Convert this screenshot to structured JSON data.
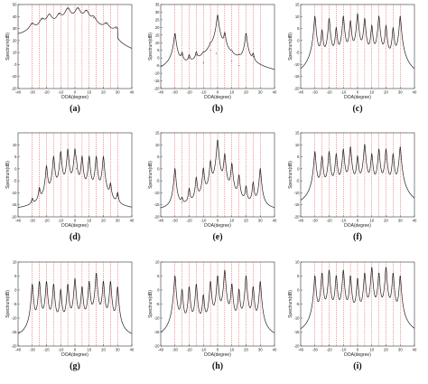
{
  "figure": {
    "panel_labels": [
      "(a)",
      "(b)",
      "(c)",
      "(d)",
      "(e)",
      "(f)",
      "(g)",
      "(h)",
      "(i)"
    ]
  },
  "chart_data": [
    {
      "type": "line",
      "panel": "(a)",
      "xlabel": "DOA(degree)",
      "ylabel": "Spectrum(dB)",
      "xlim": [
        -40,
        40
      ],
      "ylim": [
        -20,
        50
      ],
      "xticks": [
        -40,
        -30,
        -20,
        -10,
        0,
        10,
        20,
        30,
        40
      ],
      "yticks": [
        -20,
        -10,
        0,
        10,
        20,
        30,
        40,
        50
      ],
      "true_doas": [
        -30,
        -25,
        -20,
        -15,
        -10,
        -5,
        0,
        5,
        10,
        15,
        20,
        25,
        30
      ],
      "peaks": [
        {
          "x": -40,
          "y": 18
        },
        {
          "x": -30,
          "y": 34
        },
        {
          "x": -23,
          "y": 38
        },
        {
          "x": -18,
          "y": 42
        },
        {
          "x": -11,
          "y": 42
        },
        {
          "x": -5,
          "y": 47
        },
        {
          "x": 2,
          "y": 47
        },
        {
          "x": 8,
          "y": 45
        },
        {
          "x": 13,
          "y": 39
        },
        {
          "x": 22,
          "y": 34
        },
        {
          "x": 29,
          "y": 30
        }
      ],
      "baseline": 12
    },
    {
      "type": "line",
      "panel": "(b)",
      "xlabel": "DOA(degree)",
      "ylabel": "Spectrum(dB)",
      "xlim": [
        -40,
        40
      ],
      "ylim": [
        -20,
        35
      ],
      "xticks": [
        -40,
        -30,
        -20,
        -10,
        0,
        10,
        20,
        30,
        40
      ],
      "yticks": [
        -20,
        -15,
        -10,
        -5,
        0,
        5,
        10,
        15,
        20,
        25,
        30,
        35
      ],
      "true_doas": [
        -30,
        -25,
        -20,
        -15,
        -10,
        -5,
        0,
        5,
        10,
        15,
        20,
        25,
        30
      ],
      "peaks": [
        {
          "x": -30,
          "y": 16
        },
        {
          "x": -25,
          "y": 2
        },
        {
          "x": -20,
          "y": 0
        },
        {
          "x": -15,
          "y": 2
        },
        {
          "x": -10,
          "y": -3
        },
        {
          "x": -5,
          "y": 5
        },
        {
          "x": -1,
          "y": 3
        },
        {
          "x": 0,
          "y": 28
        },
        {
          "x": 5,
          "y": 16
        },
        {
          "x": 10,
          "y": -2
        },
        {
          "x": 15,
          "y": -5
        },
        {
          "x": 20,
          "y": 16
        },
        {
          "x": 25,
          "y": 1
        }
      ],
      "baseline": -18
    },
    {
      "type": "line",
      "panel": "(c)",
      "xlabel": "DOA(degree)",
      "ylabel": "Spectrum(dB)",
      "xlim": [
        -40,
        40
      ],
      "ylim": [
        -20,
        15
      ],
      "xticks": [
        -40,
        -30,
        -20,
        -10,
        0,
        10,
        20,
        30,
        40
      ],
      "yticks": [
        -20,
        -15,
        -10,
        -5,
        0,
        5,
        10,
        15
      ],
      "true_doas": [
        -30,
        -25,
        -20,
        -15,
        -10,
        -5,
        0,
        5,
        10,
        15,
        20,
        25,
        30
      ],
      "peaks": [
        {
          "x": -30,
          "y": 10
        },
        {
          "x": -25,
          "y": 4
        },
        {
          "x": -20,
          "y": 9
        },
        {
          "x": -15,
          "y": 5
        },
        {
          "x": -10,
          "y": 10
        },
        {
          "x": -5,
          "y": 8
        },
        {
          "x": 0,
          "y": 11
        },
        {
          "x": 5,
          "y": 9
        },
        {
          "x": 10,
          "y": 6
        },
        {
          "x": 15,
          "y": 10
        },
        {
          "x": 20,
          "y": 6
        },
        {
          "x": 25,
          "y": 5
        },
        {
          "x": 30,
          "y": 10
        }
      ],
      "baseline": -18
    },
    {
      "type": "line",
      "panel": "(d)",
      "xlabel": "DOA(degree)",
      "ylabel": "Spectrum(dB)",
      "xlim": [
        -40,
        40
      ],
      "ylim": [
        -20,
        15
      ],
      "xticks": [
        -40,
        -30,
        -20,
        -10,
        0,
        10,
        20,
        30,
        40
      ],
      "yticks": [
        -20,
        -15,
        -10,
        -5,
        0,
        5,
        10
      ],
      "true_doas": [
        -30,
        -25,
        -20,
        -15,
        -10,
        -5,
        0,
        5,
        10,
        15,
        20,
        25,
        30
      ],
      "peaks": [
        {
          "x": -30,
          "y": -14
        },
        {
          "x": -25,
          "y": -9
        },
        {
          "x": -20,
          "y": 1
        },
        {
          "x": -15,
          "y": 5
        },
        {
          "x": -10,
          "y": 7
        },
        {
          "x": -5,
          "y": 8
        },
        {
          "x": 0,
          "y": 8
        },
        {
          "x": 1,
          "y": 0
        },
        {
          "x": 5,
          "y": 5
        },
        {
          "x": 10,
          "y": 5
        },
        {
          "x": 15,
          "y": 5
        },
        {
          "x": 20,
          "y": 5
        },
        {
          "x": 25,
          "y": -7
        },
        {
          "x": 30,
          "y": -11
        }
      ],
      "baseline": -18
    },
    {
      "type": "line",
      "panel": "(e)",
      "xlabel": "DOA(degree)",
      "ylabel": "Spectrum(dB)",
      "xlim": [
        -40,
        40
      ],
      "ylim": [
        -20,
        15
      ],
      "xticks": [
        -40,
        -30,
        -20,
        -10,
        0,
        10,
        20,
        30,
        40
      ],
      "yticks": [
        -20,
        -15,
        -10,
        -5,
        0,
        5,
        10,
        15
      ],
      "true_doas": [
        -30,
        -25,
        -20,
        -15,
        -10,
        -5,
        0,
        5,
        10,
        15,
        20,
        25,
        30
      ],
      "peaks": [
        {
          "x": -30,
          "y": 0
        },
        {
          "x": -25,
          "y": -14
        },
        {
          "x": -20,
          "y": -9
        },
        {
          "x": -15,
          "y": -4
        },
        {
          "x": -10,
          "y": 0
        },
        {
          "x": -5,
          "y": 3
        },
        {
          "x": 0,
          "y": 12
        },
        {
          "x": 5,
          "y": 6
        },
        {
          "x": 10,
          "y": 2
        },
        {
          "x": 15,
          "y": -3
        },
        {
          "x": 20,
          "y": -8
        },
        {
          "x": 25,
          "y": -6
        },
        {
          "x": 30,
          "y": 0
        }
      ],
      "baseline": -18
    },
    {
      "type": "line",
      "panel": "(f)",
      "xlabel": "DOA(degree)",
      "ylabel": "Spectrum(dB)",
      "xlim": [
        -40,
        40
      ],
      "ylim": [
        -20,
        15
      ],
      "xticks": [
        -40,
        -30,
        -20,
        -10,
        0,
        10,
        20,
        30,
        40
      ],
      "yticks": [
        -20,
        -15,
        -10,
        -5,
        0,
        5,
        10,
        15
      ],
      "true_doas": [
        -30,
        -25,
        -20,
        -15,
        -10,
        -5,
        0,
        5,
        10,
        15,
        20,
        25,
        30
      ],
      "peaks": [
        {
          "x": -30,
          "y": 7
        },
        {
          "x": -25,
          "y": 5
        },
        {
          "x": -20,
          "y": 7
        },
        {
          "x": -15,
          "y": 6
        },
        {
          "x": -10,
          "y": 8
        },
        {
          "x": -5,
          "y": 9
        },
        {
          "x": 0,
          "y": 5
        },
        {
          "x": 5,
          "y": 10
        },
        {
          "x": 10,
          "y": 6
        },
        {
          "x": 15,
          "y": 8
        },
        {
          "x": 20,
          "y": 8
        },
        {
          "x": 25,
          "y": 6
        },
        {
          "x": 30,
          "y": 9
        }
      ],
      "baseline": -18
    },
    {
      "type": "line",
      "panel": "(g)",
      "xlabel": "DOA(degree)",
      "ylabel": "Spectrum(dB)",
      "xlim": [
        -40,
        40
      ],
      "ylim": [
        -20,
        10
      ],
      "xticks": [
        -40,
        -30,
        -20,
        -10,
        0,
        10,
        20,
        30,
        40
      ],
      "yticks": [
        -20,
        -15,
        -10,
        -5,
        0,
        5,
        10
      ],
      "true_doas": [
        -30,
        -25,
        -20,
        -15,
        -10,
        -5,
        0,
        5,
        10,
        15,
        20,
        25,
        30
      ],
      "peaks": [
        {
          "x": -30,
          "y": 2
        },
        {
          "x": -25,
          "y": 3
        },
        {
          "x": -20,
          "y": 3
        },
        {
          "x": -15,
          "y": 2
        },
        {
          "x": -10,
          "y": 0
        },
        {
          "x": -5,
          "y": 2
        },
        {
          "x": 0,
          "y": 4
        },
        {
          "x": 5,
          "y": 1
        },
        {
          "x": 10,
          "y": 3
        },
        {
          "x": 15,
          "y": 6
        },
        {
          "x": 20,
          "y": 3
        },
        {
          "x": 25,
          "y": 3
        },
        {
          "x": 30,
          "y": 1
        }
      ],
      "baseline": -18
    },
    {
      "type": "line",
      "panel": "(h)",
      "xlabel": "DOA(degree)",
      "ylabel": "Spectrum(dB)",
      "xlim": [
        -40,
        40
      ],
      "ylim": [
        -20,
        10
      ],
      "xticks": [
        -40,
        -30,
        -20,
        -10,
        0,
        10,
        20,
        30,
        40
      ],
      "yticks": [
        -20,
        -15,
        -10,
        -5,
        0,
        5,
        10
      ],
      "true_doas": [
        -30,
        -25,
        -20,
        -15,
        -10,
        -5,
        0,
        5,
        10,
        15,
        20,
        25,
        30
      ],
      "peaks": [
        {
          "x": -30,
          "y": 5
        },
        {
          "x": -25,
          "y": 0
        },
        {
          "x": -20,
          "y": 1
        },
        {
          "x": -15,
          "y": 2
        },
        {
          "x": -10,
          "y": -2
        },
        {
          "x": -5,
          "y": 3
        },
        {
          "x": 0,
          "y": 5
        },
        {
          "x": 5,
          "y": 7
        },
        {
          "x": 10,
          "y": 2
        },
        {
          "x": 15,
          "y": 0
        },
        {
          "x": 20,
          "y": 5
        },
        {
          "x": 25,
          "y": 1
        },
        {
          "x": 30,
          "y": 3
        }
      ],
      "baseline": -18
    },
    {
      "type": "line",
      "panel": "(i)",
      "xlabel": "DOA(degree)",
      "ylabel": "Spectrum(dB)",
      "xlim": [
        -40,
        40
      ],
      "ylim": [
        -20,
        10
      ],
      "xticks": [
        -40,
        -30,
        -20,
        -10,
        0,
        10,
        20,
        30,
        40
      ],
      "yticks": [
        -20,
        -15,
        -10,
        -5,
        0,
        5,
        10
      ],
      "true_doas": [
        -30,
        -25,
        -20,
        -15,
        -10,
        -5,
        0,
        5,
        10,
        15,
        20,
        25,
        30
      ],
      "peaks": [
        {
          "x": -30,
          "y": 5
        },
        {
          "x": -25,
          "y": 6
        },
        {
          "x": -20,
          "y": 7
        },
        {
          "x": -15,
          "y": 5
        },
        {
          "x": -10,
          "y": 7
        },
        {
          "x": -5,
          "y": 5
        },
        {
          "x": 0,
          "y": 4
        },
        {
          "x": 5,
          "y": 6
        },
        {
          "x": 10,
          "y": 8
        },
        {
          "x": 15,
          "y": 6
        },
        {
          "x": 20,
          "y": 8
        },
        {
          "x": 25,
          "y": 6
        },
        {
          "x": 30,
          "y": 5
        }
      ],
      "baseline": -18
    }
  ]
}
